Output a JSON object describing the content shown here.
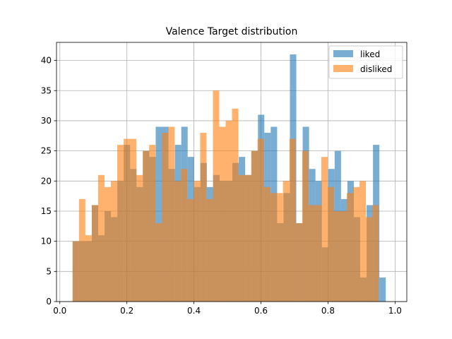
{
  "chart_data": {
    "type": "bar",
    "subtype": "overlaid histogram",
    "title": "Valence Target distribution",
    "xlabel": "",
    "ylabel": "",
    "xlim": [
      -0.01,
      1.035
    ],
    "ylim": [
      0,
      43
    ],
    "xticks": [
      0.0,
      0.2,
      0.4,
      0.6,
      0.8,
      1.0
    ],
    "xtick_labels": [
      "0.0",
      "0.2",
      "0.4",
      "0.6",
      "0.8",
      "1.0"
    ],
    "yticks": [
      0,
      5,
      10,
      15,
      20,
      25,
      30,
      35,
      40
    ],
    "ytick_labels": [
      "0",
      "5",
      "10",
      "15",
      "20",
      "25",
      "30",
      "35",
      "40"
    ],
    "grid": true,
    "legend_position": "upper right",
    "series": [
      {
        "name": "liked",
        "color": "#1f77b4",
        "alpha": 0.6,
        "bin_start": 0.0381,
        "bin_width": 0.019064,
        "values": [
          10,
          10,
          10,
          16,
          11,
          15,
          14,
          20,
          26,
          22,
          19,
          25,
          24,
          29,
          29,
          22,
          26,
          29,
          24,
          19,
          23,
          19,
          21,
          20,
          20,
          23,
          24,
          21,
          25,
          31,
          28,
          29,
          13,
          18,
          41,
          13,
          29,
          22,
          20,
          9,
          22,
          25,
          17,
          20,
          14,
          4,
          16,
          26,
          4
        ]
      },
      {
        "name": "disliked",
        "color": "#ff7f0e",
        "alpha": 0.6,
        "bin_start": 0.0381,
        "bin_width": 0.01902,
        "values": [
          10,
          17,
          11,
          16,
          21,
          19,
          20,
          26,
          27,
          27,
          21,
          25,
          26,
          13,
          28,
          29,
          20,
          22,
          17,
          20,
          28,
          17,
          35,
          29,
          30,
          32,
          21,
          21,
          25,
          27,
          19,
          18,
          18,
          20,
          27,
          13,
          25,
          16,
          16,
          24,
          19,
          15,
          15,
          18,
          19,
          20,
          14,
          16
        ]
      }
    ]
  }
}
